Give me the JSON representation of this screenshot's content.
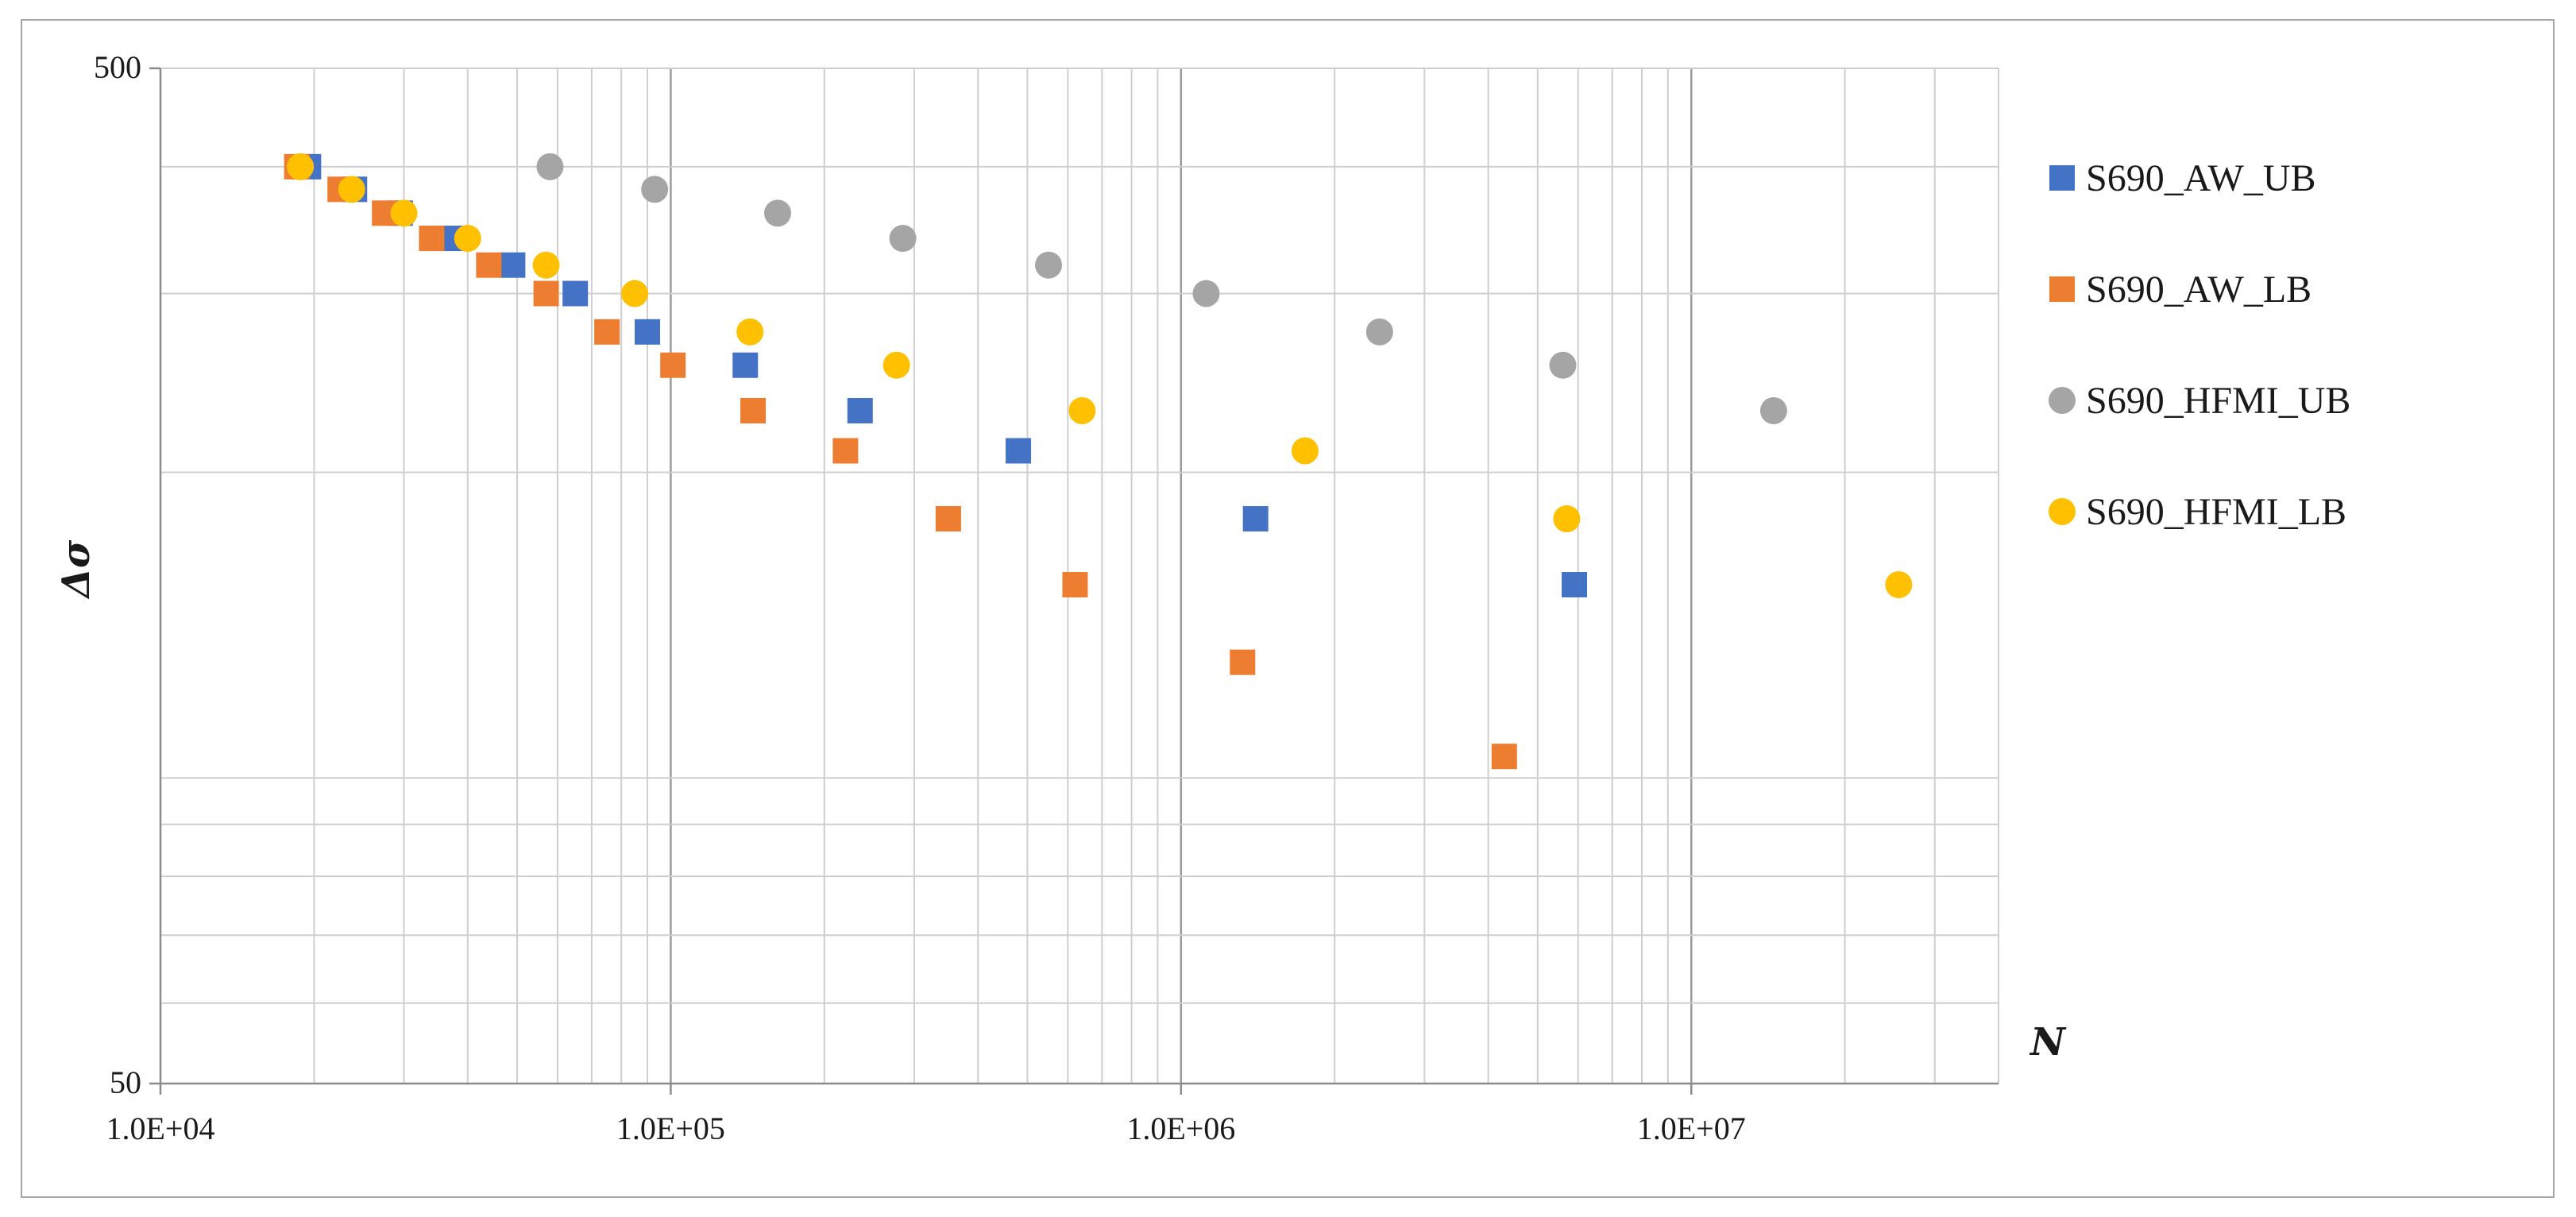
{
  "chart_data": {
    "type": "scatter",
    "title": "",
    "xlabel": "N",
    "ylabel": "Δσ",
    "xscale": "log",
    "yscale": "log",
    "xlim": [
      10000,
      40000000
    ],
    "ylim": [
      50,
      500
    ],
    "x_ticks": [
      10000,
      100000,
      1000000,
      10000000
    ],
    "x_tick_labels": [
      "1.0E+04",
      "1.0E+05",
      "1.0E+06",
      "1.0E+07"
    ],
    "y_ticks": [
      50,
      500
    ],
    "y_tick_labels": [
      "50",
      "500"
    ],
    "grid": true,
    "legend_position": "right",
    "series": [
      {
        "name": "S690_AW_UB",
        "marker": "square",
        "color": "#4472c4",
        "points": [
          [
            19500,
            400
          ],
          [
            24000,
            380
          ],
          [
            29500,
            360
          ],
          [
            37000,
            340
          ],
          [
            49000,
            320
          ],
          [
            65000,
            300
          ],
          [
            90000,
            275
          ],
          [
            140000,
            255
          ],
          [
            235000,
            230
          ],
          [
            480000,
            210
          ],
          [
            1400000,
            180
          ],
          [
            5900000,
            155
          ]
        ]
      },
      {
        "name": "S690_AW_LB",
        "marker": "square",
        "color": "#ed7d31",
        "points": [
          [
            18500,
            400
          ],
          [
            22500,
            380
          ],
          [
            27500,
            360
          ],
          [
            34000,
            340
          ],
          [
            44000,
            320
          ],
          [
            57000,
            300
          ],
          [
            75000,
            275
          ],
          [
            101000,
            255
          ],
          [
            145000,
            230
          ],
          [
            220000,
            210
          ],
          [
            350000,
            180
          ],
          [
            620000,
            155
          ],
          [
            1320000,
            130
          ],
          [
            4300000,
            105
          ]
        ]
      },
      {
        "name": "S690_HFMI_UB",
        "marker": "circle",
        "color": "#a5a5a5",
        "points": [
          [
            58000,
            400
          ],
          [
            93000,
            380
          ],
          [
            162000,
            360
          ],
          [
            285000,
            340
          ],
          [
            550000,
            320
          ],
          [
            1120000,
            300
          ],
          [
            2450000,
            275
          ],
          [
            5600000,
            255
          ],
          [
            14500000,
            230
          ]
        ]
      },
      {
        "name": "S690_HFMI_LB",
        "marker": "circle",
        "color": "#ffc000",
        "points": [
          [
            18800,
            400
          ],
          [
            23700,
            380
          ],
          [
            30000,
            360
          ],
          [
            40000,
            340
          ],
          [
            57000,
            320
          ],
          [
            85000,
            300
          ],
          [
            143000,
            275
          ],
          [
            277000,
            255
          ],
          [
            640000,
            230
          ],
          [
            1750000,
            210
          ],
          [
            5700000,
            180
          ],
          [
            25500000,
            155
          ]
        ]
      }
    ]
  }
}
